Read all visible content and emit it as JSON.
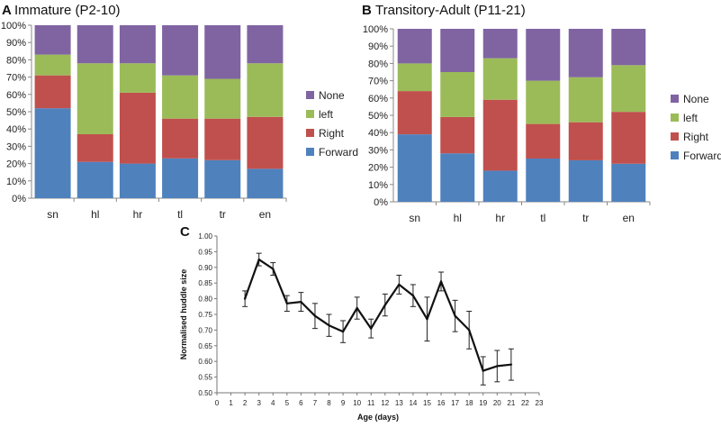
{
  "panels": {
    "a": {
      "letter": "A",
      "title": "Immature (P2-10)"
    },
    "b": {
      "letter": "B",
      "title": "Transitory-Adult (P11-21)"
    },
    "c": {
      "letter": "C"
    }
  },
  "colors": {
    "Forward": "#4f81bd",
    "Right": "#c0504d",
    "left": "#9bbb59",
    "None": "#8064a2"
  },
  "legend_order": [
    "None",
    "left",
    "Right",
    "Forward"
  ],
  "chart_data": [
    {
      "id": "A",
      "type": "bar",
      "stacked": true,
      "title": "Immature (P2-10)",
      "categories": [
        "sn",
        "hl",
        "hr",
        "tl",
        "tr",
        "en"
      ],
      "series": [
        {
          "name": "Forward",
          "values": [
            52,
            21,
            20,
            23,
            22,
            17
          ]
        },
        {
          "name": "Right",
          "values": [
            19,
            16,
            41,
            23,
            24,
            30
          ]
        },
        {
          "name": "left",
          "values": [
            12,
            41,
            17,
            25,
            23,
            31
          ]
        },
        {
          "name": "None",
          "values": [
            17,
            22,
            22,
            29,
            31,
            22
          ]
        }
      ],
      "ylim": [
        0,
        100
      ],
      "yticks": [
        "0%",
        "10%",
        "20%",
        "30%",
        "40%",
        "50%",
        "60%",
        "70%",
        "80%",
        "90%",
        "100%"
      ],
      "legend": "right"
    },
    {
      "id": "B",
      "type": "bar",
      "stacked": true,
      "title": "Transitory-Adult (P11-21)",
      "categories": [
        "sn",
        "hl",
        "hr",
        "tl",
        "tr",
        "en"
      ],
      "series": [
        {
          "name": "Forward",
          "values": [
            39,
            28,
            18,
            25,
            24,
            22
          ]
        },
        {
          "name": "Right",
          "values": [
            25,
            21,
            41,
            20,
            22,
            30
          ]
        },
        {
          "name": "left",
          "values": [
            16,
            26,
            24,
            25,
            26,
            27
          ]
        },
        {
          "name": "None",
          "values": [
            20,
            25,
            17,
            30,
            28,
            21
          ]
        }
      ],
      "ylim": [
        0,
        100
      ],
      "yticks": [
        "0%",
        "10%",
        "20%",
        "30%",
        "40%",
        "50%",
        "60%",
        "70%",
        "80%",
        "90%",
        "100%"
      ],
      "legend": "right"
    },
    {
      "id": "C",
      "type": "line",
      "title": "",
      "xlabel": "Age (days)",
      "ylabel": "Normalised huddle size",
      "xlim": [
        0,
        23
      ],
      "ylim": [
        0.5,
        1.0
      ],
      "xticks": [
        "0",
        "1",
        "2",
        "3",
        "4",
        "5",
        "6",
        "7",
        "8",
        "9",
        "10",
        "11",
        "12",
        "13",
        "14",
        "15",
        "16",
        "17",
        "18",
        "19",
        "20",
        "21",
        "22",
        "23"
      ],
      "yticks": [
        "0.50",
        "0.55",
        "0.60",
        "0.65",
        "0.70",
        "0.75",
        "0.80",
        "0.85",
        "0.90",
        "0.95",
        "1.00"
      ],
      "series": [
        {
          "name": "Normalised huddle size",
          "x": [
            2,
            3,
            4,
            5,
            6,
            7,
            8,
            9,
            10,
            11,
            12,
            13,
            14,
            15,
            16,
            17,
            18,
            19,
            20,
            21
          ],
          "y": [
            0.8,
            0.925,
            0.895,
            0.785,
            0.79,
            0.745,
            0.715,
            0.695,
            0.77,
            0.705,
            0.78,
            0.845,
            0.81,
            0.735,
            0.855,
            0.745,
            0.7,
            0.57,
            0.585,
            0.59
          ],
          "err": [
            0.025,
            0.02,
            0.02,
            0.025,
            0.03,
            0.04,
            0.035,
            0.035,
            0.035,
            0.03,
            0.035,
            0.03,
            0.035,
            0.07,
            0.03,
            0.05,
            0.06,
            0.045,
            0.05,
            0.05
          ]
        }
      ]
    }
  ]
}
